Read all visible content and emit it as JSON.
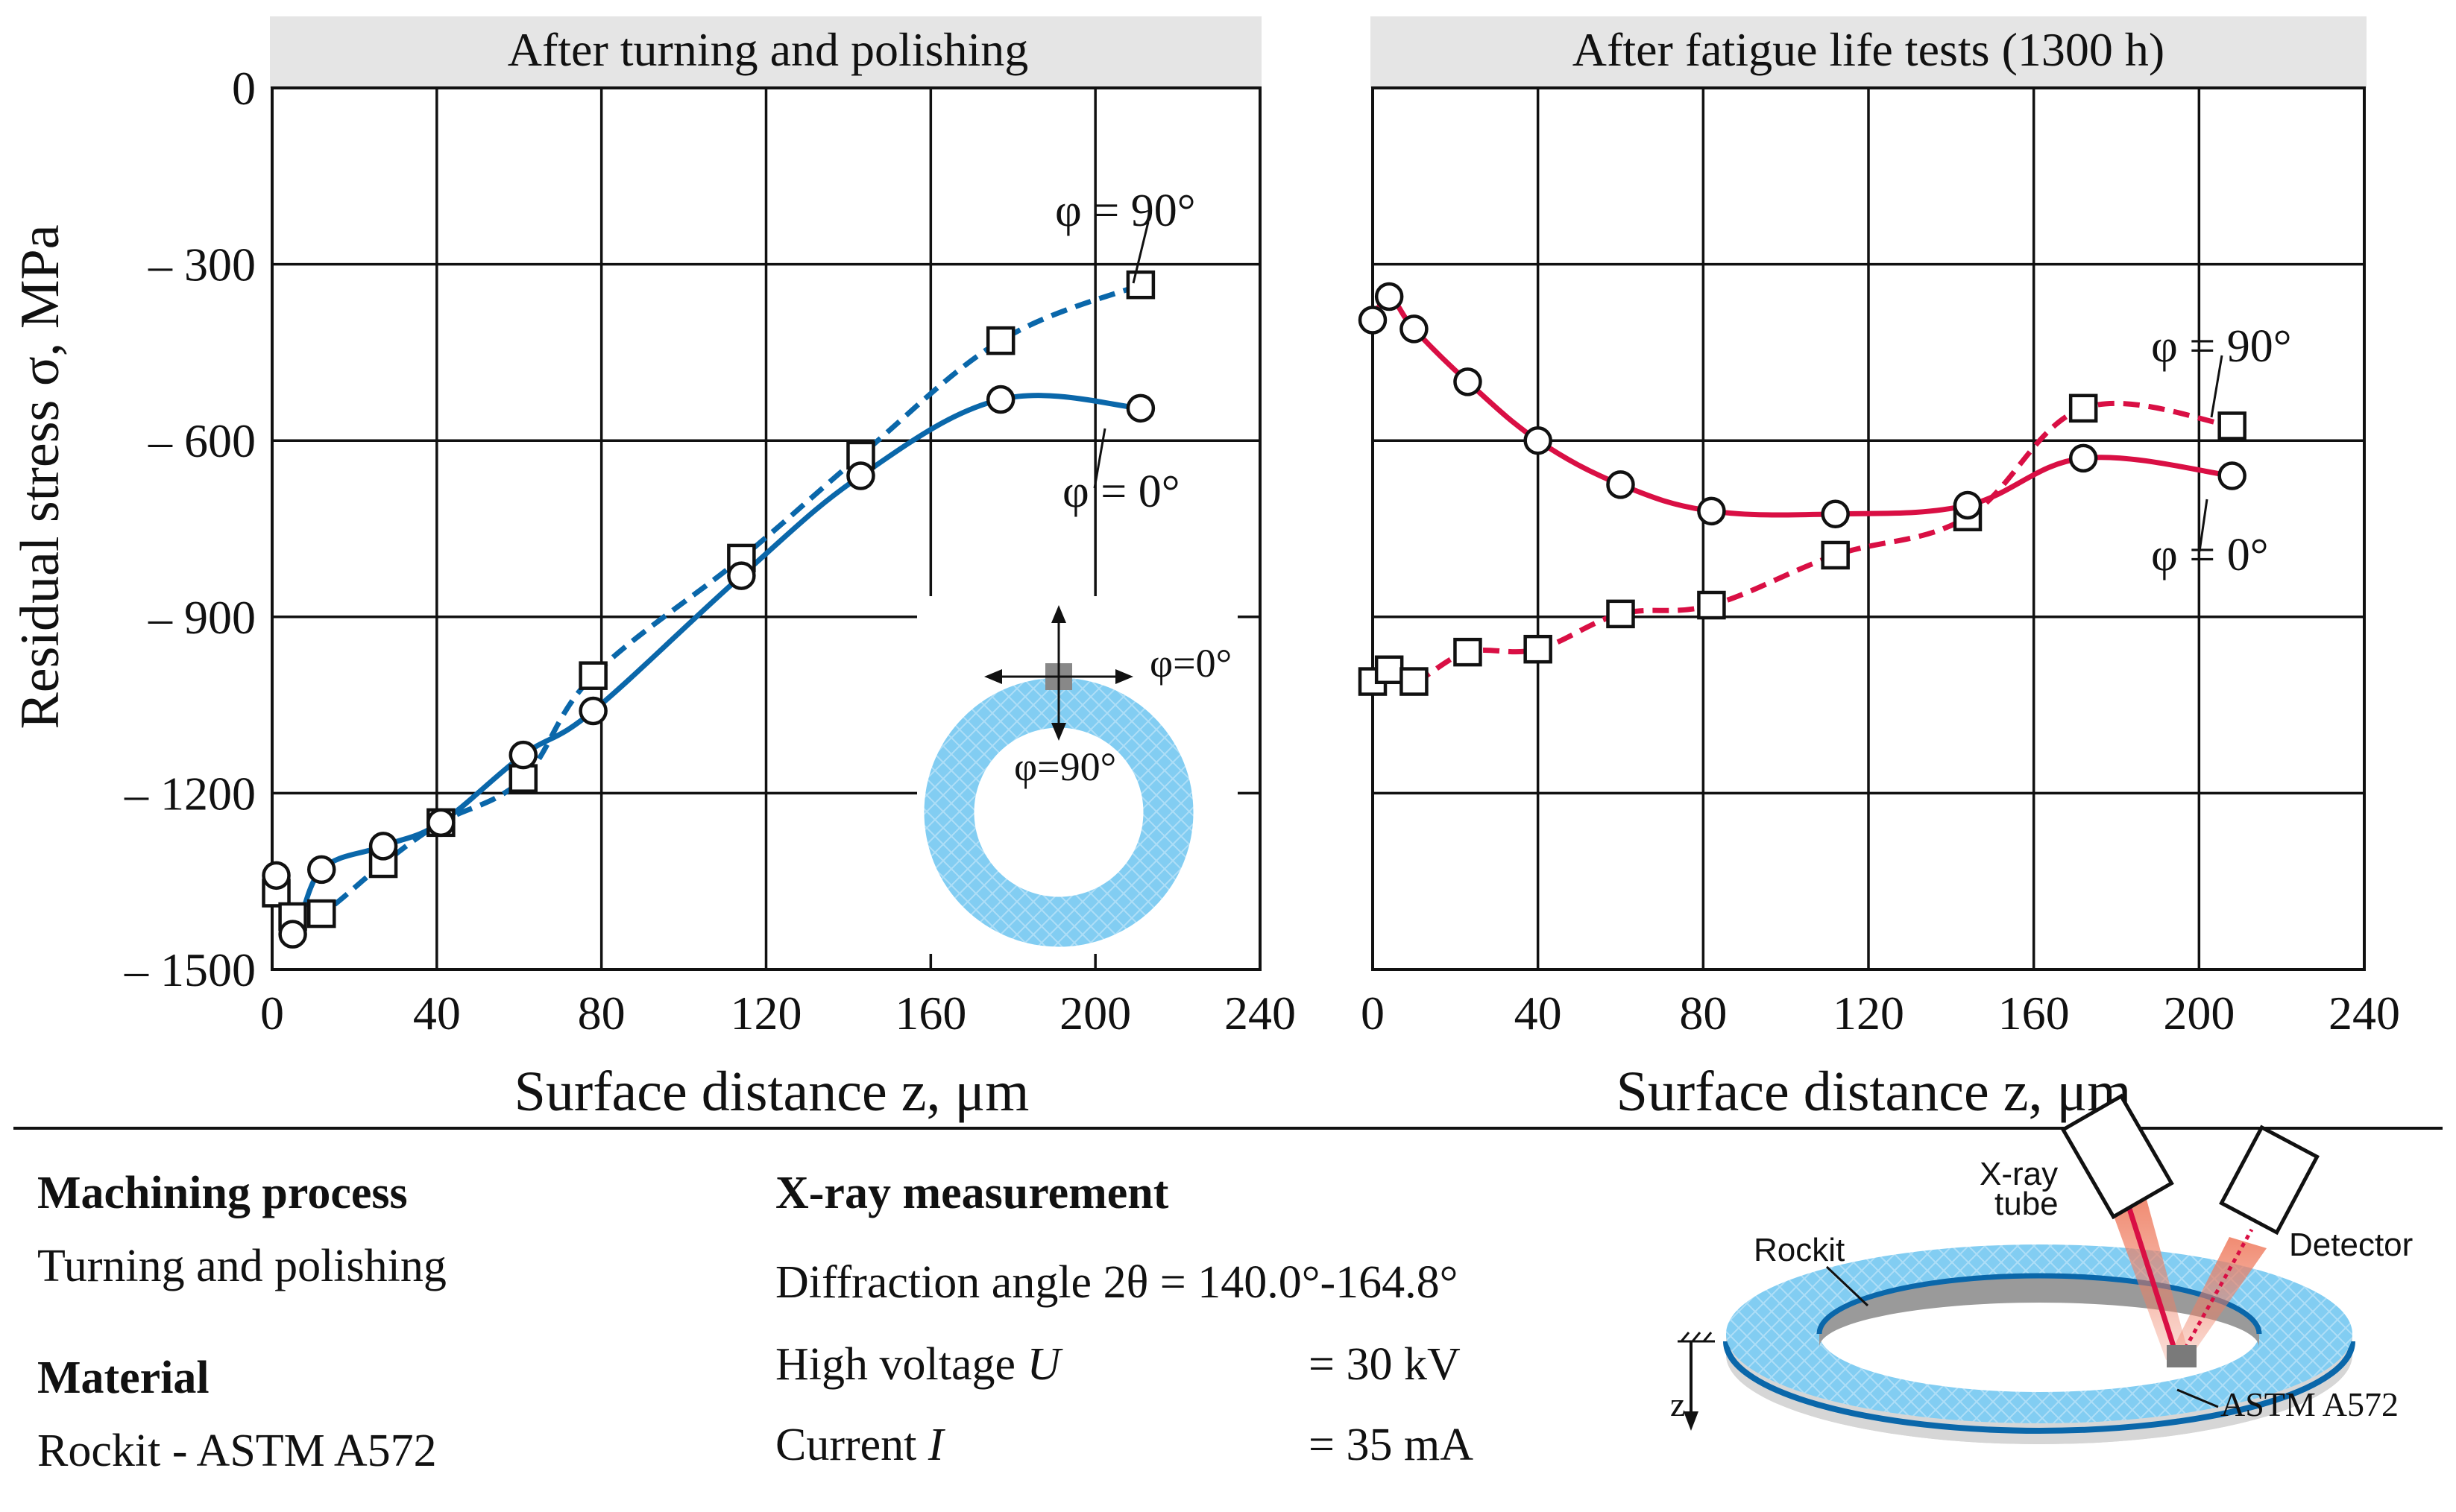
{
  "colors": {
    "blue": "#0a67aa",
    "red": "#d90f44",
    "title_bg": "#e5e5e5",
    "ring_blue": "#82cdf2",
    "ring_gray": "#d6d6d6",
    "beam": "#ef7e62"
  },
  "y_axis_label": "Residual stress σ, MPa",
  "chart_data": [
    {
      "type": "line",
      "title": "After turning and polishing",
      "xlabel": "Surface distance z, μm",
      "ylabel": "Residual stress σ, MPa",
      "xlim": [
        0,
        240
      ],
      "ylim": [
        -1500,
        0
      ],
      "xticks": [
        0,
        40,
        80,
        120,
        160,
        200,
        240
      ],
      "yticks": [
        0,
        -300,
        -600,
        -900,
        -1200,
        -1500
      ],
      "ytick_labels": [
        "0",
        "– 300",
        "– 600",
        "– 900",
        "– 1200",
        "– 1500"
      ],
      "grid": true,
      "series": [
        {
          "name": "φ = 90°",
          "marker": "square",
          "line": "dashed",
          "x": [
            1,
            5,
            12,
            27,
            41,
            61,
            78,
            114,
            143,
            177,
            211
          ],
          "y": [
            -1370,
            -1410,
            -1405,
            -1320,
            -1250,
            -1175,
            -1000,
            -800,
            -625,
            -430,
            -335
          ]
        },
        {
          "name": "φ = 0°",
          "marker": "circle",
          "line": "solid",
          "x": [
            1,
            5,
            12,
            27,
            41,
            61,
            78,
            114,
            143,
            177,
            211
          ],
          "y": [
            -1340,
            -1440,
            -1330,
            -1290,
            -1250,
            -1135,
            -1060,
            -830,
            -660,
            -530,
            -545
          ]
        }
      ],
      "annotations": [
        "φ = 90°",
        "φ = 0°"
      ],
      "inset": {
        "label_0": "φ=0°",
        "label_90": "φ=90°"
      }
    },
    {
      "type": "line",
      "title": "After fatigue life tests (1300 h)",
      "xlabel": "Surface distance z, μm",
      "xlim": [
        0,
        240
      ],
      "ylim": [
        -1500,
        0
      ],
      "xticks": [
        0,
        40,
        80,
        120,
        160,
        200,
        240
      ],
      "grid": true,
      "series": [
        {
          "name": "φ = 90°",
          "marker": "square",
          "line": "dashed",
          "x": [
            0,
            4,
            10,
            23,
            40,
            60,
            82,
            112,
            144,
            172,
            208
          ],
          "y": [
            -1010,
            -990,
            -1010,
            -960,
            -955,
            -895,
            -880,
            -795,
            -730,
            -545,
            -575
          ]
        },
        {
          "name": "φ = 0°",
          "marker": "circle",
          "line": "solid",
          "x": [
            0,
            4,
            10,
            23,
            40,
            60,
            82,
            112,
            144,
            172,
            208
          ],
          "y": [
            -395,
            -355,
            -410,
            -500,
            -600,
            -675,
            -720,
            -725,
            -710,
            -630,
            -660
          ]
        }
      ],
      "annotations": [
        "φ = 90°",
        "φ = 0°"
      ]
    }
  ],
  "info": {
    "machining_title": "Machining process",
    "machining_value": "Turning and polishing",
    "material_title": "Material",
    "material_value": "Rockit - ASTM A572",
    "xray_title": "X-ray measurement",
    "diffraction": "Diffraction angle 2θ = 140.0°-164.8°",
    "voltage_label": "High voltage",
    "voltage_symbol": "U",
    "voltage_value": "= 30 kV",
    "current_label": "Current",
    "current_symbol": "I",
    "current_value": "= 35 mA"
  },
  "diagram": {
    "xray_tube": [
      "X-ray",
      "tube"
    ],
    "detector": "Detector",
    "rockit": "Rockit",
    "astm": "ASTM A572",
    "z_axis": "z"
  }
}
